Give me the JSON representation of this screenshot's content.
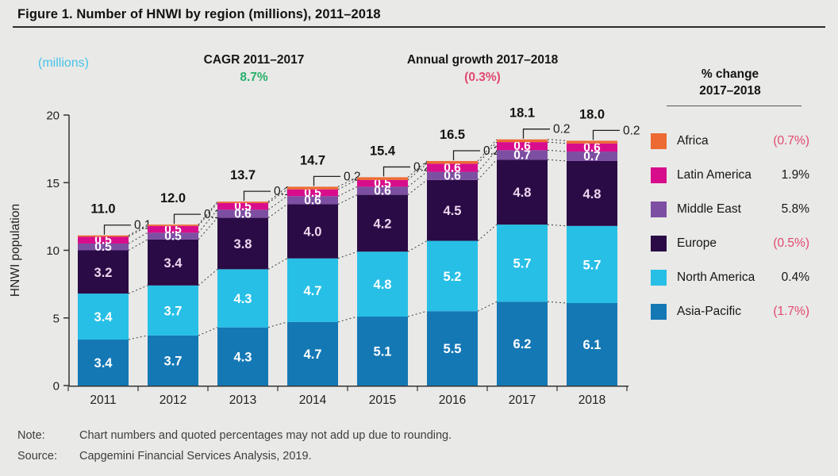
{
  "figure": {
    "title": "Figure 1. Number of HNWI by region (millions), 2011–2018"
  },
  "header": {
    "axis_units_label": "(millions)",
    "cagr_label": "CAGR 2011–2017",
    "cagr_value": "8.7%",
    "growth_label": "Annual growth 2017–2018",
    "growth_value": "(0.3%)"
  },
  "colors": {
    "accent_cyan_text": "#47c3e8",
    "positive_green": "#27b06a",
    "negative_pink": "#e2486e",
    "background": "#e9e9e7"
  },
  "legend": {
    "title_line1": "% change",
    "title_line2": "2017–2018",
    "items": [
      {
        "label": "Africa",
        "value": "(0.7%)",
        "negative": true,
        "color": "#ed6a33"
      },
      {
        "label": "Latin America",
        "value": "1.9%",
        "negative": false,
        "color": "#d80d8c"
      },
      {
        "label": "Middle East",
        "value": "5.8%",
        "negative": false,
        "color": "#7d4fa2"
      },
      {
        "label": "Europe",
        "value": "(0.5%)",
        "negative": true,
        "color": "#2a0b45"
      },
      {
        "label": "North America",
        "value": "0.4%",
        "negative": false,
        "color": "#27bfe6"
      },
      {
        "label": "Asia-Pacific",
        "value": "(1.7%)",
        "negative": true,
        "color": "#1478b5"
      }
    ]
  },
  "chart_data": {
    "type": "bar",
    "stacked": true,
    "title": "Number of HNWI by region (millions), 2011–2018",
    "ylabel": "HNWI population",
    "xlabel": "",
    "ylim": [
      0,
      20
    ],
    "yticks": [
      0,
      5,
      10,
      15,
      20
    ],
    "grid": false,
    "legend_position": "right",
    "categories": [
      "2011",
      "2012",
      "2013",
      "2014",
      "2015",
      "2016",
      "2017",
      "2018"
    ],
    "totals": [
      "11.0",
      "12.0",
      "13.7",
      "14.7",
      "15.4",
      "16.5",
      "18.1",
      "18.0"
    ],
    "series": [
      {
        "key": "asia-pacific",
        "name": "Asia-Pacific",
        "color": "#1478b5",
        "label_color": "#ffffff",
        "in_label": true,
        "values": [
          3.4,
          3.7,
          4.3,
          4.7,
          5.1,
          5.5,
          6.2,
          6.1
        ]
      },
      {
        "key": "north-america",
        "name": "North America",
        "color": "#27bfe6",
        "label_color": "#ffffff",
        "in_label": true,
        "values": [
          3.4,
          3.7,
          4.3,
          4.7,
          4.8,
          5.2,
          5.7,
          5.7
        ]
      },
      {
        "key": "europe",
        "name": "Europe",
        "color": "#2a0b45",
        "label_color": "#eed6ef",
        "in_label": true,
        "values": [
          3.2,
          3.4,
          3.8,
          4.0,
          4.2,
          4.5,
          4.8,
          4.8
        ]
      },
      {
        "key": "middle-east",
        "name": "Middle East",
        "color": "#7d4fa2",
        "label_color": "#ffffff",
        "in_label": true,
        "values": [
          0.5,
          0.5,
          0.6,
          0.6,
          0.6,
          0.6,
          0.7,
          0.7
        ]
      },
      {
        "key": "latin-america",
        "name": "Latin America",
        "color": "#d80d8c",
        "label_color": "#ffffff",
        "in_label": true,
        "values": [
          0.5,
          0.5,
          0.5,
          0.5,
          0.5,
          0.6,
          0.6,
          0.6
        ]
      },
      {
        "key": "africa",
        "name": "Africa",
        "color": "#ed6a33",
        "label_color": "#1b1b1b",
        "in_label": false,
        "values": [
          0.1,
          0.1,
          0.1,
          0.2,
          0.2,
          0.2,
          0.2,
          0.2
        ]
      }
    ]
  },
  "footer": {
    "note_label": "Note:",
    "note_text": "Chart numbers and quoted percentages may not add up due to rounding.",
    "source_label": "Source:",
    "source_text": "Capgemini Financial Services Analysis, 2019."
  }
}
